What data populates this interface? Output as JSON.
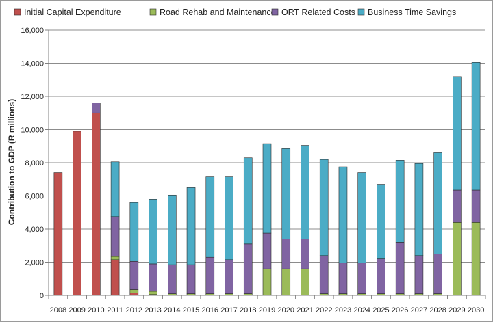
{
  "chart_data": {
    "type": "bar",
    "stacked": true,
    "title": "",
    "xlabel": "",
    "ylabel": "Contribution to GDP (R millions)",
    "ylim": [
      0,
      16000
    ],
    "yticks": [
      "0",
      "2,000",
      "4,000",
      "6,000",
      "8,000",
      "10,000",
      "12,000",
      "14,000",
      "16,000"
    ],
    "grid": true,
    "legend_position": "top",
    "categories": [
      "2008",
      "2009",
      "2010",
      "2011",
      "2012",
      "2013",
      "2014",
      "2015",
      "2016",
      "2017",
      "2018",
      "2019",
      "2020",
      "2021",
      "2022",
      "2023",
      "2024",
      "2025",
      "2026",
      "2027",
      "2028",
      "2029",
      "2030"
    ],
    "series": [
      {
        "name": "Initial Capital Expenditure",
        "color": "#c0504d",
        "values": [
          7400,
          9900,
          11000,
          2150,
          150,
          50,
          0,
          0,
          0,
          0,
          0,
          0,
          0,
          0,
          0,
          0,
          0,
          0,
          0,
          0,
          0,
          0,
          0
        ]
      },
      {
        "name": "Road Rehab and Maintenance",
        "color": "#9bbb59",
        "values": [
          0,
          0,
          0,
          200,
          200,
          200,
          100,
          100,
          100,
          100,
          100,
          1600,
          1600,
          1600,
          100,
          100,
          100,
          100,
          100,
          100,
          100,
          4400,
          4400
        ]
      },
      {
        "name": "ORT Related Costs",
        "color": "#8064a2",
        "values": [
          0,
          0,
          600,
          2400,
          1700,
          1650,
          1750,
          1750,
          2200,
          2050,
          3000,
          2150,
          1800,
          1800,
          2300,
          1850,
          1850,
          2100,
          3100,
          2300,
          2400,
          1950,
          1950
        ]
      },
      {
        "name": "Business Time Savings",
        "color": "#4bacc6",
        "values": [
          0,
          0,
          0,
          3300,
          3550,
          3900,
          4200,
          4650,
          4850,
          5000,
          5200,
          5400,
          5450,
          5650,
          5800,
          5800,
          5450,
          4500,
          4950,
          5550,
          6100,
          6850,
          7700
        ]
      }
    ]
  }
}
